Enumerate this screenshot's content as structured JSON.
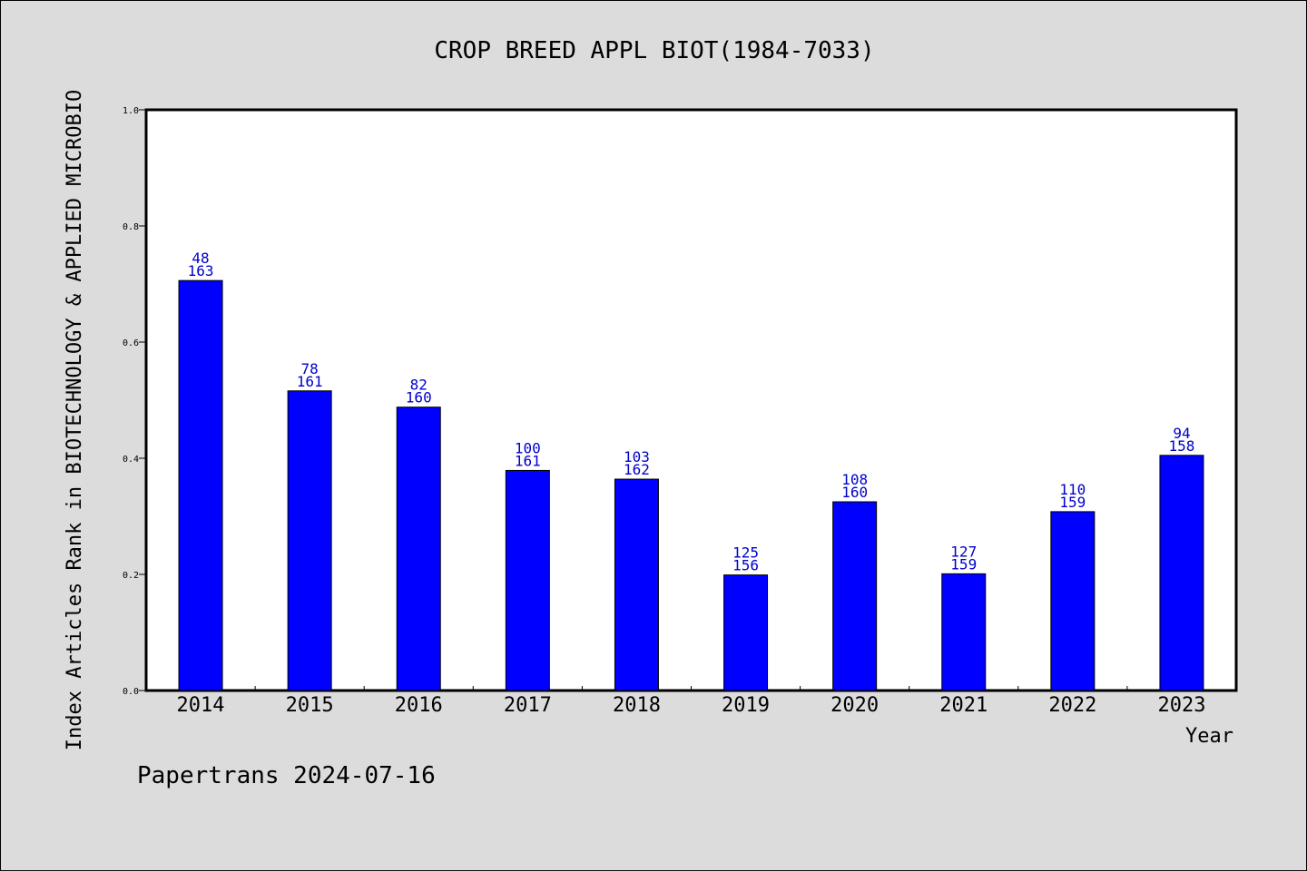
{
  "chart_data": {
    "type": "bar",
    "title": "CROP BREED APPL BIOT(1984-7033)",
    "xlabel": "Year",
    "ylabel": "Index Articles Rank in BIOTECHNOLOGY & APPLIED MICROBIO",
    "ylim": [
      0,
      1.0
    ],
    "yticks": [
      "0.0",
      "0.2",
      "0.4",
      "0.6",
      "0.8",
      "1.0"
    ],
    "grid": false,
    "categories": [
      "2014",
      "2015",
      "2016",
      "2017",
      "2018",
      "2019",
      "2020",
      "2021",
      "2022",
      "2023"
    ],
    "values": [
      0.706,
      0.516,
      0.488,
      0.379,
      0.364,
      0.199,
      0.325,
      0.201,
      0.308,
      0.405
    ],
    "rank": [
      "48",
      "78",
      "82",
      "100",
      "103",
      "125",
      "108",
      "127",
      "110",
      "94"
    ],
    "total": [
      "163",
      "161",
      "160",
      "161",
      "162",
      "156",
      "160",
      "159",
      "159",
      "158"
    ],
    "bar_color": "#0000ff",
    "label_color": "#0000cc"
  },
  "footer": "Papertrans 2024-07-16"
}
